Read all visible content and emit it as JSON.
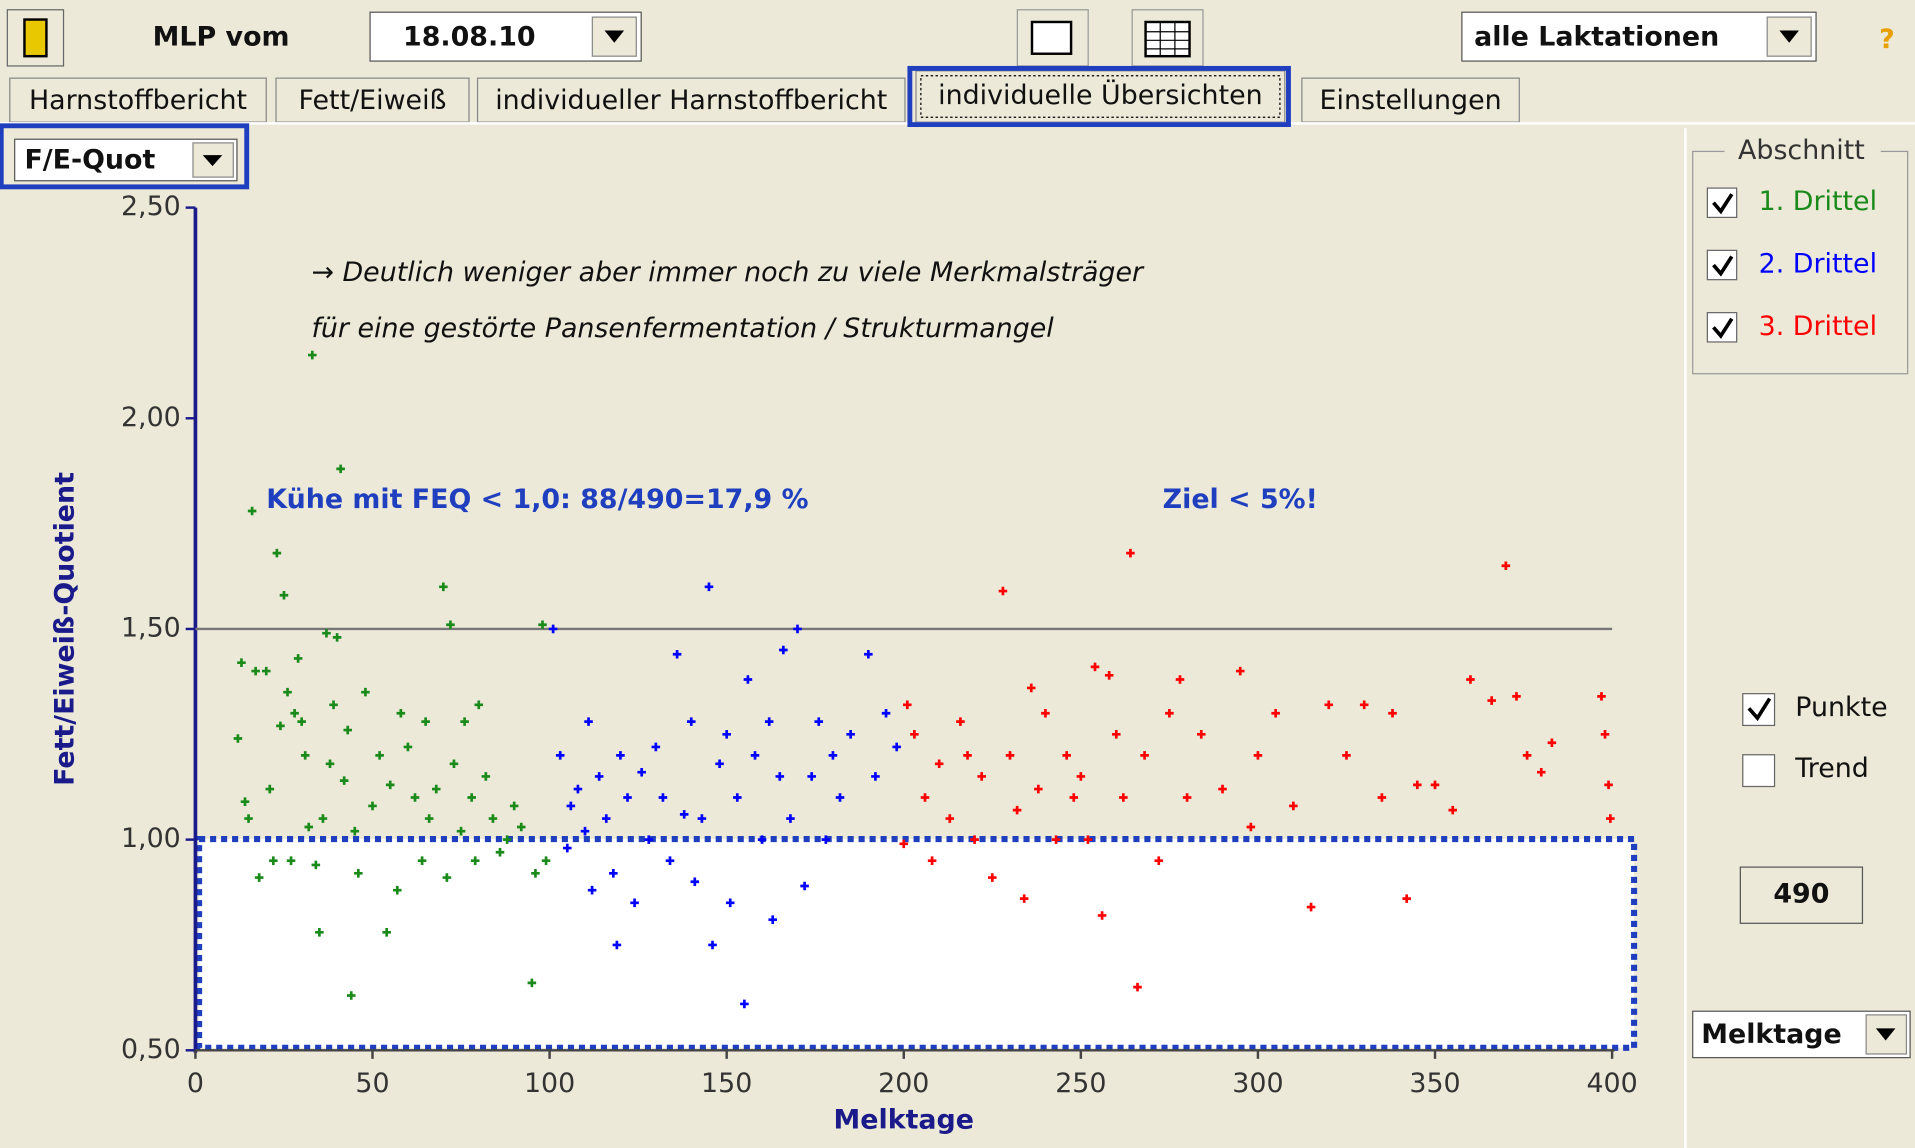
{
  "toolbar": {
    "label": "MLP vom",
    "date": "18.08.10",
    "lactation": "alle Laktationen",
    "help": "?"
  },
  "tabs": [
    "Harnstoffbericht",
    "Fett/Eiweiß",
    "individueller Harnstoffbericht",
    "individuelle Übersichten",
    "Einstellungen"
  ],
  "selector": "F/E-Quot",
  "panel": {
    "group_title": "Abschnitt",
    "points": "Punkte",
    "trend": "Trend",
    "count": "490",
    "x_selector": "Melktage"
  },
  "chart_data": {
    "type": "scatter",
    "annotations": [
      "→ Deutlich weniger aber immer noch zu viele Merkmalsträger",
      "für eine gestörte Pansenfermentation / Strukturmangel",
      "Kühe mit FEQ < 1,0: 88/490=17,9 %",
      "Ziel < 5%!"
    ],
    "xlabel": "Melktage",
    "ylabel": "Fett/Eiweiß-Quotient",
    "xlim": [
      0,
      400
    ],
    "ylim": [
      0.5,
      2.5
    ],
    "xticks": [
      0,
      50,
      100,
      150,
      200,
      250,
      300,
      350,
      400
    ],
    "yticks": [
      {
        "value": 0.5,
        "label": "0,50"
      },
      {
        "value": 1.0,
        "label": "1,00"
      },
      {
        "value": 1.5,
        "label": "1,50"
      },
      {
        "value": 2.0,
        "label": "2,00"
      },
      {
        "value": 2.5,
        "label": "2,50"
      }
    ],
    "hline": 1.5,
    "series": [
      {
        "name": "1. Drittel",
        "color": "#1a8a1a",
        "x": [
          12,
          13,
          14,
          15,
          16,
          17,
          18,
          20,
          21,
          22,
          23,
          24,
          25,
          26,
          27,
          28,
          29,
          30,
          31,
          32,
          33,
          34,
          35,
          36,
          37,
          38,
          39,
          40,
          41,
          42,
          43,
          44,
          45,
          46,
          48,
          50,
          52,
          54,
          55,
          57,
          58,
          60,
          62,
          64,
          65,
          66,
          68,
          70,
          71,
          72,
          73,
          75,
          76,
          78,
          79,
          80,
          82,
          84,
          86,
          88,
          90,
          92,
          95,
          96,
          98,
          99
        ],
        "values": [
          1.24,
          1.42,
          1.09,
          1.05,
          1.78,
          1.4,
          0.91,
          1.4,
          1.12,
          0.95,
          1.68,
          1.27,
          1.58,
          1.35,
          0.95,
          1.3,
          1.43,
          1.28,
          1.2,
          1.03,
          2.15,
          0.94,
          0.78,
          1.05,
          1.49,
          1.18,
          1.32,
          1.48,
          1.88,
          1.14,
          1.26,
          0.63,
          1.02,
          0.92,
          1.35,
          1.08,
          1.2,
          0.78,
          1.13,
          0.88,
          1.3,
          1.22,
          1.1,
          0.95,
          1.28,
          1.05,
          1.12,
          1.6,
          0.91,
          1.51,
          1.18,
          1.02,
          1.28,
          1.1,
          0.95,
          1.32,
          1.15,
          1.05,
          0.97,
          1.0,
          1.08,
          1.03,
          0.66,
          0.92,
          1.51,
          0.95
        ]
      },
      {
        "name": "2. Drittel",
        "color": "#0000ff",
        "x": [
          101,
          103,
          105,
          106,
          108,
          110,
          111,
          112,
          114,
          116,
          118,
          119,
          120,
          122,
          124,
          126,
          128,
          130,
          132,
          134,
          136,
          138,
          140,
          141,
          143,
          145,
          146,
          148,
          150,
          151,
          153,
          155,
          156,
          158,
          160,
          162,
          163,
          165,
          166,
          168,
          170,
          172,
          174,
          176,
          178,
          180,
          182,
          185,
          190,
          192,
          195,
          198
        ],
        "values": [
          1.5,
          1.2,
          0.98,
          1.08,
          1.12,
          1.02,
          1.28,
          0.88,
          1.15,
          1.05,
          0.92,
          0.75,
          1.2,
          1.1,
          0.85,
          1.16,
          1.0,
          1.22,
          1.1,
          0.95,
          1.44,
          1.06,
          1.28,
          0.9,
          1.05,
          1.6,
          0.75,
          1.18,
          1.25,
          0.85,
          1.1,
          0.61,
          1.38,
          1.2,
          1.0,
          1.28,
          0.81,
          1.15,
          1.45,
          1.05,
          1.5,
          0.89,
          1.15,
          1.28,
          1.0,
          1.2,
          1.1,
          1.25,
          1.44,
          1.15,
          1.3,
          1.22
        ]
      },
      {
        "name": "3. Drittel",
        "color": "#ff0000",
        "x": [
          200,
          201,
          203,
          206,
          208,
          210,
          213,
          216,
          218,
          220,
          222,
          225,
          228,
          230,
          232,
          234,
          236,
          238,
          240,
          243,
          246,
          248,
          250,
          252,
          254,
          256,
          258,
          260,
          262,
          264,
          266,
          268,
          272,
          275,
          278,
          280,
          284,
          290,
          295,
          298,
          300,
          305,
          310,
          315,
          320,
          325,
          330,
          335,
          338,
          342,
          345,
          350,
          355,
          360,
          366,
          370,
          373,
          376,
          380,
          383,
          397,
          398,
          399,
          399.5
        ],
        "values": [
          0.99,
          1.32,
          1.25,
          1.1,
          0.95,
          1.18,
          1.05,
          1.28,
          1.2,
          1.0,
          1.15,
          0.91,
          1.59,
          1.2,
          1.07,
          0.86,
          1.36,
          1.12,
          1.3,
          1.0,
          1.2,
          1.1,
          1.15,
          1.0,
          1.41,
          0.82,
          1.39,
          1.25,
          1.1,
          1.68,
          0.65,
          1.2,
          0.95,
          1.3,
          1.38,
          1.1,
          1.25,
          1.12,
          1.4,
          1.03,
          1.2,
          1.3,
          1.08,
          0.84,
          1.32,
          1.2,
          1.32,
          1.1,
          1.3,
          0.86,
          1.13,
          1.13,
          1.07,
          1.38,
          1.33,
          1.65,
          1.34,
          1.2,
          1.16,
          1.23,
          1.34,
          1.25,
          1.13,
          1.05
        ]
      }
    ]
  }
}
